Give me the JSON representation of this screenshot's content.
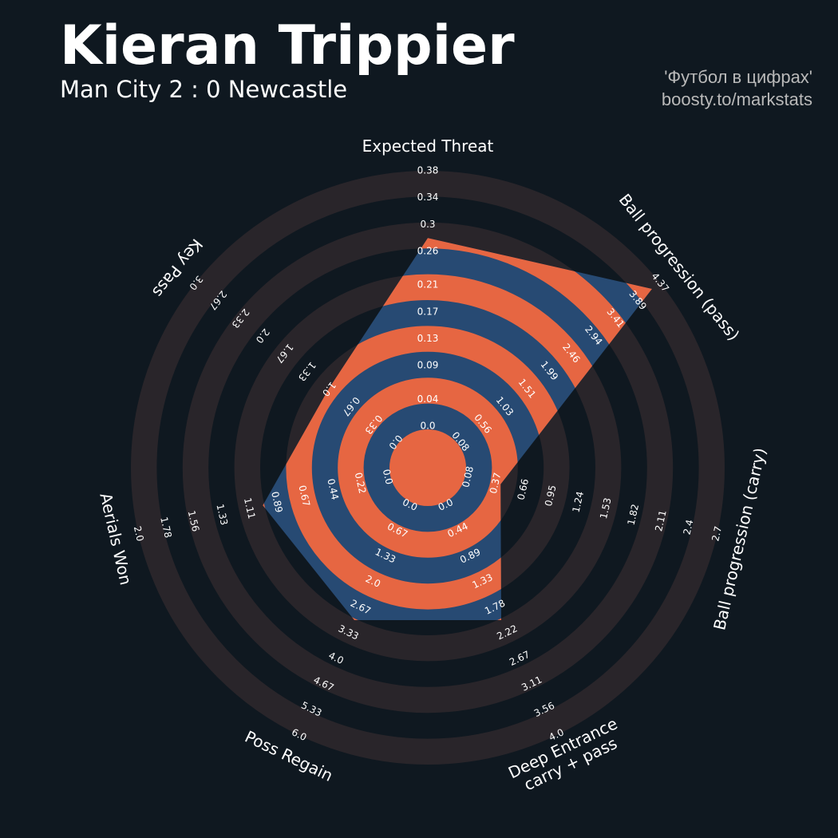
{
  "chart_data": {
    "type": "radar",
    "title": "Kieran Trippier",
    "subtitle": "Man City 2 : 0 Newcastle",
    "credits": [
      "'Футбол в цифрах'",
      "boosty.to/markstats"
    ],
    "params": [
      "Expected Threat",
      "Ball progression (pass)",
      "Ball progression (carry)",
      "Deep Entrance\ncarry + pass",
      "Poss Regain",
      "Aerials Won",
      "Key Pass"
    ],
    "values": [
      0.28,
      4.2,
      0.42,
      2.0,
      3.0,
      1.0,
      1.0
    ],
    "ranges": [
      [
        0,
        0.38
      ],
      [
        0.08,
        4.37
      ],
      [
        0.08,
        2.7
      ],
      [
        0,
        4
      ],
      [
        0,
        6
      ],
      [
        0,
        2
      ],
      [
        0,
        3
      ]
    ],
    "ticks": [
      [
        {
          "value": 0,
          "label": "0.0"
        },
        0.04,
        0.09,
        0.13,
        0.17,
        0.21,
        0.26,
        0.3,
        0.34,
        0.38
      ],
      [
        0.08,
        0.56,
        1.03,
        1.51,
        1.99,
        2.46,
        2.94,
        3.41,
        3.89,
        4.37
      ],
      [
        0.08,
        0.37,
        0.66,
        0.95,
        1.24,
        1.53,
        1.82,
        2.11,
        2.4,
        2.7
      ],
      [
        {
          "value": 0,
          "label": "0.0"
        },
        0.44,
        0.89,
        1.33,
        1.78,
        2.22,
        2.67,
        3.11,
        3.56,
        {
          "value": 4,
          "label": "4.0"
        }
      ],
      [
        {
          "value": 0,
          "label": "0.0"
        },
        0.67,
        1.33,
        {
          "value": 2,
          "label": "2.0"
        },
        2.67,
        3.33,
        {
          "value": 4,
          "label": "4.0"
        },
        4.67,
        5.33,
        {
          "value": 6,
          "label": "6.0"
        }
      ],
      [
        {
          "value": 0,
          "label": "0.0"
        },
        0.22,
        0.44,
        0.67,
        0.89,
        1.11,
        1.33,
        1.56,
        1.78,
        {
          "value": 2,
          "label": "2.0"
        }
      ],
      [
        {
          "value": 0,
          "label": "0.0"
        },
        0.33,
        0.67,
        {
          "value": 1,
          "label": "1.0"
        },
        1.33,
        1.67,
        {
          "value": 2,
          "label": "2.0"
        },
        2.33,
        2.67,
        {
          "value": 3,
          "label": "3.0"
        }
      ]
    ],
    "color": "#274a73",
    "ring_color": "#e66642",
    "background_ring_color": "#29252a"
  }
}
